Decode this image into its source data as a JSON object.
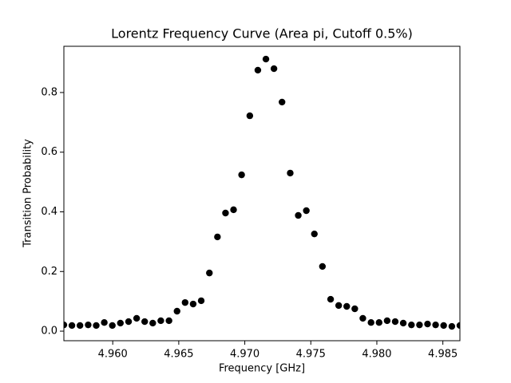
{
  "chart_data": {
    "type": "scatter",
    "title": "Lorentz Frequency Curve (Area pi, Cutoff 0.5%)",
    "x_label": "Frequency [GHz]",
    "y_label": "Transition Probability",
    "color": "#000000",
    "x": [
      4.9563,
      4.95691,
      4.95752,
      4.95814,
      4.95875,
      4.95936,
      4.95997,
      4.96058,
      4.9612,
      4.96181,
      4.96242,
      4.96303,
      4.96364,
      4.96426,
      4.96487,
      4.96548,
      4.96609,
      4.9667,
      4.96732,
      4.96793,
      4.96854,
      4.96915,
      4.96976,
      4.97038,
      4.97099,
      4.9716,
      4.97221,
      4.97282,
      4.97344,
      4.97405,
      4.97466,
      4.97527,
      4.97588,
      4.9765,
      4.97711,
      4.97772,
      4.97833,
      4.97894,
      4.97956,
      4.98017,
      4.98078,
      4.98139,
      4.982,
      4.98262,
      4.98323,
      4.98384,
      4.98445,
      4.98506,
      4.98568,
      4.98629
    ],
    "values": [
      0.021,
      0.019,
      0.019,
      0.021,
      0.019,
      0.029,
      0.019,
      0.027,
      0.032,
      0.043,
      0.032,
      0.027,
      0.035,
      0.035,
      0.067,
      0.096,
      0.091,
      0.102,
      0.195,
      0.316,
      0.396,
      0.407,
      0.524,
      0.722,
      0.875,
      0.912,
      0.88,
      0.768,
      0.53,
      0.388,
      0.404,
      0.326,
      0.217,
      0.107,
      0.086,
      0.083,
      0.075,
      0.043,
      0.029,
      0.029,
      0.035,
      0.032,
      0.027,
      0.021,
      0.021,
      0.024,
      0.021,
      0.019,
      0.016,
      0.019
    ],
    "xlim": [
      4.9563,
      4.98629
    ],
    "ylim": [
      -0.032,
      0.955
    ],
    "xticks": [
      {
        "value": 4.96,
        "label": "4.960"
      },
      4.965,
      {
        "value": 4.97,
        "label": "4.970"
      },
      4.975,
      {
        "value": 4.98,
        "label": "4.980"
      },
      4.985
    ],
    "yticks": [
      {
        "value": 0,
        "label": "0.0"
      },
      0.2,
      0.4,
      0.6,
      0.8
    ],
    "grid": false
  }
}
